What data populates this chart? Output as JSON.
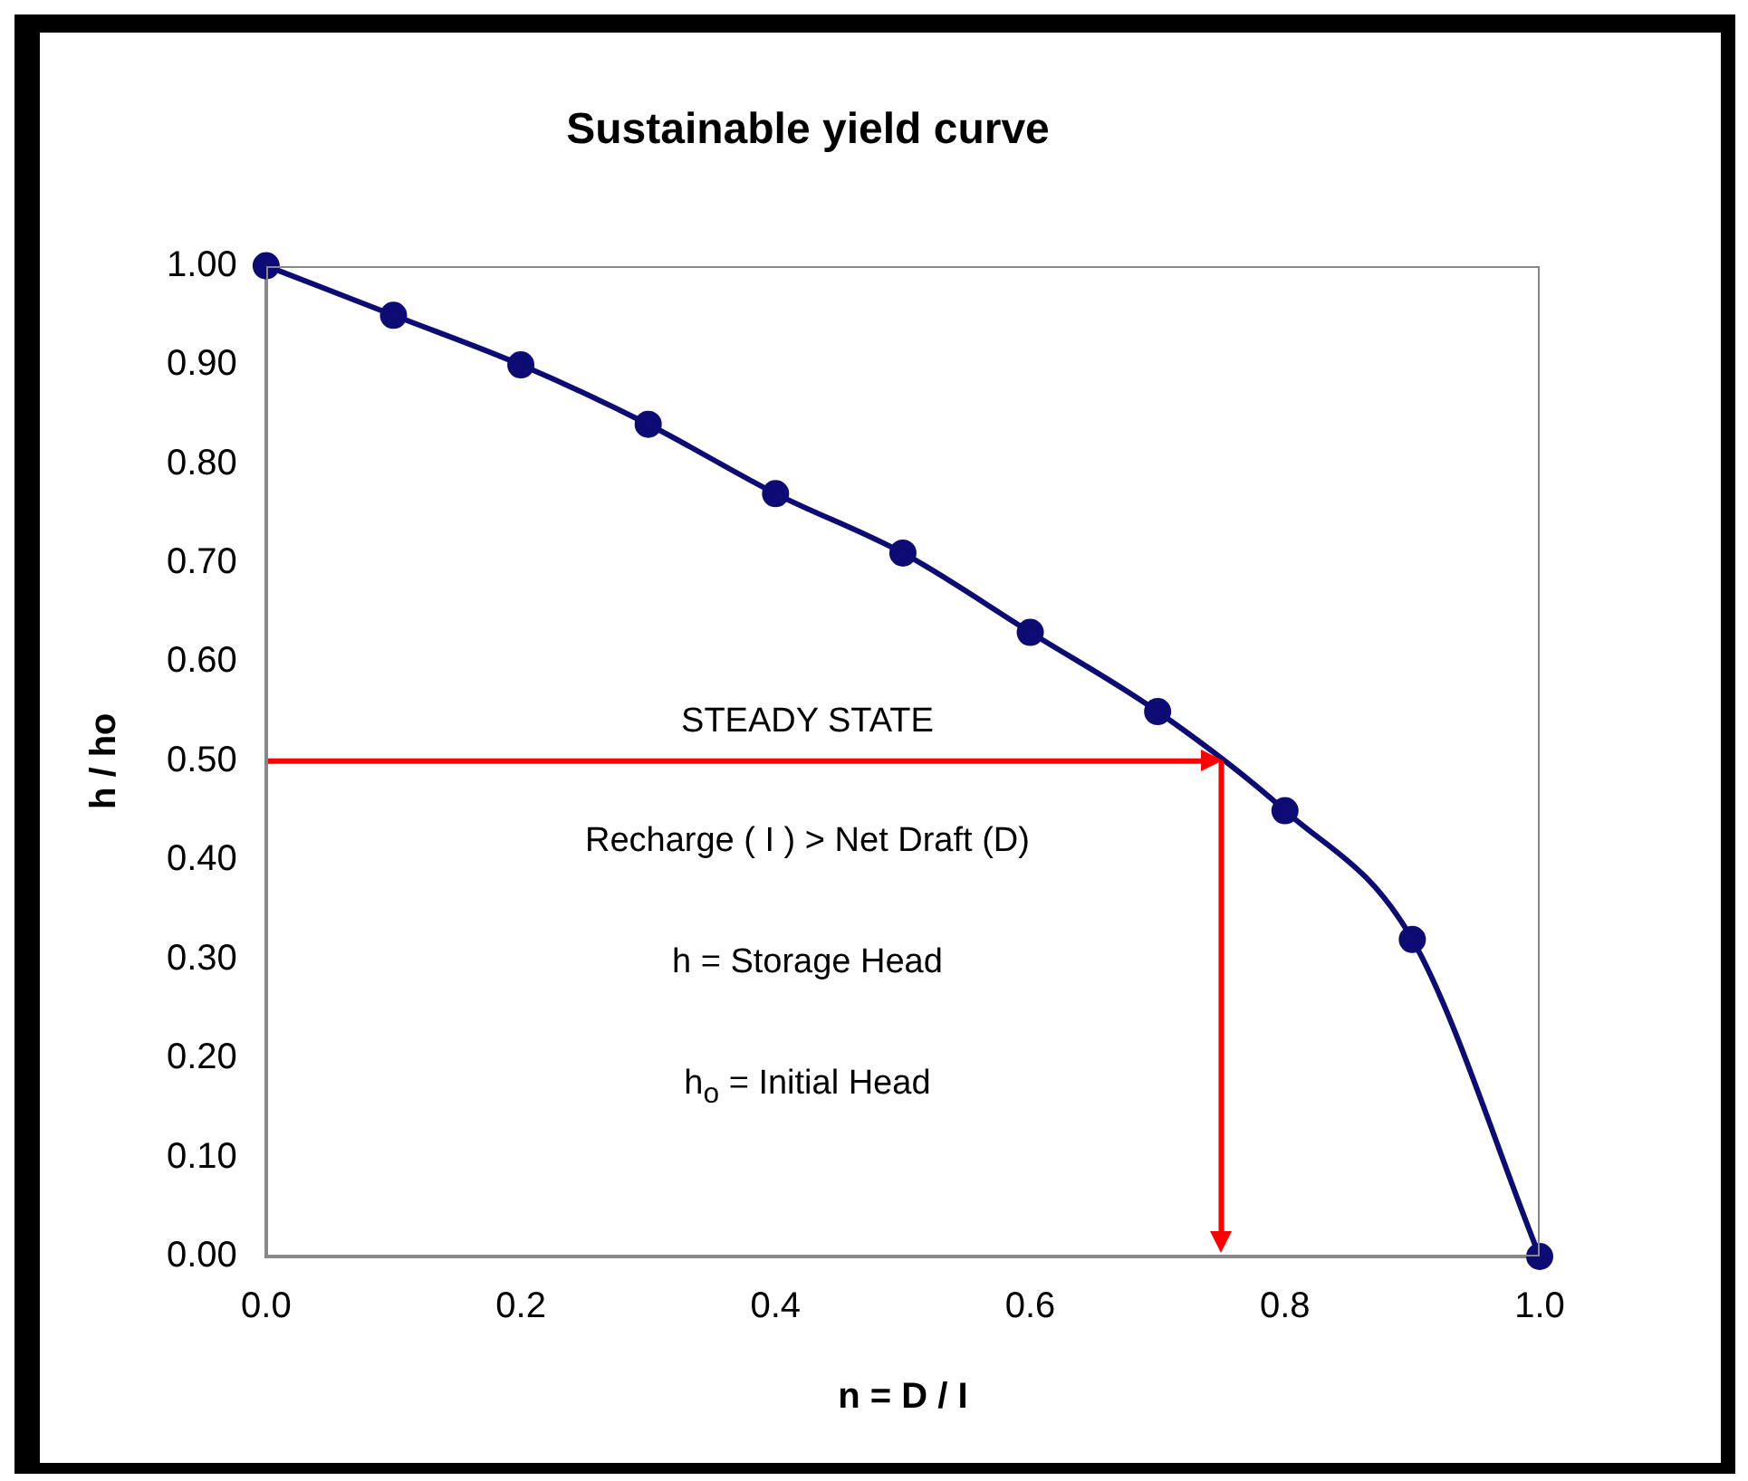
{
  "chart_data": {
    "type": "line",
    "title": "Sustainable yield curve",
    "xlabel": "n = D / I",
    "ylabel": "h / ho",
    "x": [
      0,
      0.1,
      0.2,
      0.3,
      0.4,
      0.5,
      0.6,
      0.7,
      0.8,
      0.9,
      1.0
    ],
    "series": [
      {
        "color": "#0c0c74",
        "values": [
          1.0,
          0.95,
          0.9,
          0.84,
          0.77,
          0.71,
          0.63,
          0.55,
          0.45,
          0.32,
          0
        ]
      }
    ],
    "xlim": [
      0,
      1
    ],
    "xticks": [
      {
        "value": 0,
        "label": "0.0"
      },
      {
        "value": 0.2,
        "label": "0.2"
      },
      {
        "value": 0.4,
        "label": "0.4"
      },
      {
        "value": 0.6,
        "label": "0.6"
      },
      {
        "value": 0.8,
        "label": "0.8"
      },
      {
        "value": 1,
        "label": "1.0"
      }
    ],
    "ylim": [
      0,
      1
    ],
    "yticks": [
      {
        "value": 0,
        "label": "0.00"
      },
      {
        "value": 0.1,
        "label": "0.10"
      },
      {
        "value": 0.2,
        "label": "0.20"
      },
      {
        "value": 0.3,
        "label": "0.30"
      },
      {
        "value": 0.4,
        "label": "0.40"
      },
      {
        "value": 0.5,
        "label": "0.50"
      },
      {
        "value": 0.6,
        "label": "0.60"
      },
      {
        "value": 0.7,
        "label": "0.70"
      },
      {
        "value": 0.8,
        "label": "0.80"
      },
      {
        "value": 0.9,
        "label": "0.90"
      },
      {
        "value": 1,
        "label": "1.00"
      }
    ],
    "ref_lines": [
      {
        "axis": "y",
        "value": 0.5,
        "color": "#ff0000"
      },
      {
        "axis": "x",
        "value": 0.75,
        "color": "#ff0000"
      }
    ],
    "annotations": [
      "STEADY STATE",
      "Recharge ( I ) > Net Draft (D)",
      "h = Storage Head",
      "h$_{o}$ = Initial Head"
    ],
    "marker": "circle",
    "line_style": "solid",
    "grid": false,
    "legend": false
  }
}
